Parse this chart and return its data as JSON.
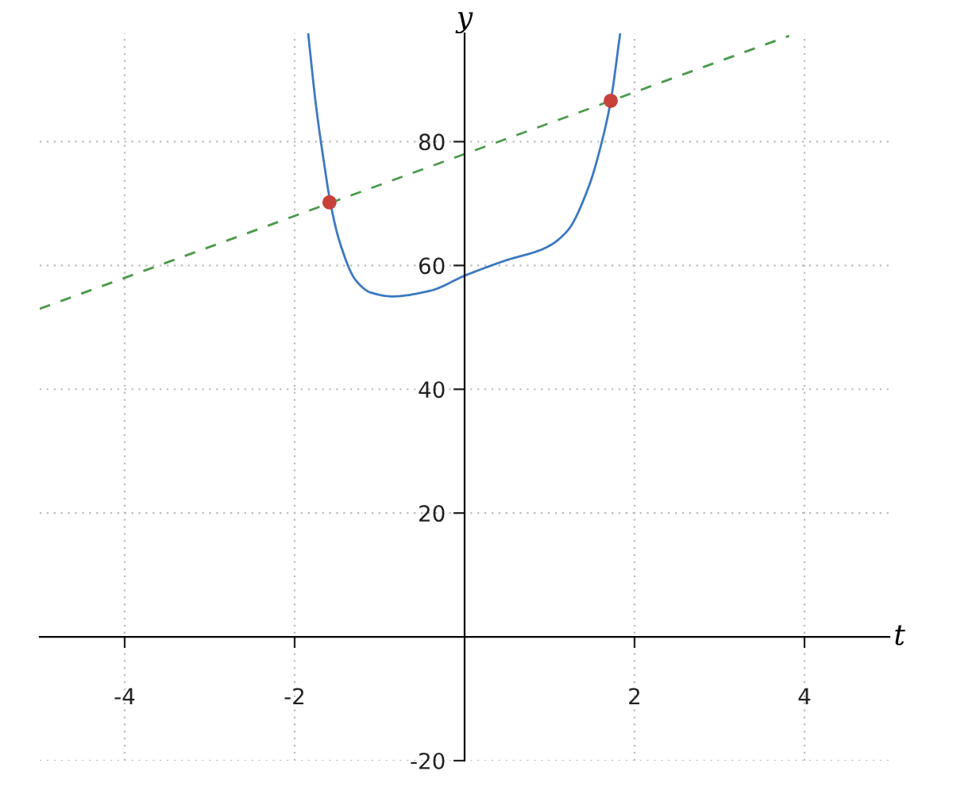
{
  "chart_data": {
    "type": "line",
    "xlabel": "t",
    "ylabel": "y",
    "xlim": [
      -5,
      5
    ],
    "ylim": [
      -20,
      97.5
    ],
    "xticks": [
      -4,
      -2,
      2,
      4
    ],
    "yticks": [
      -20,
      20,
      40,
      60,
      80
    ],
    "grid": true,
    "series": [
      {
        "color": "#3c78c0",
        "line_style": "solid",
        "x": [
          -1.84,
          -1.75,
          -1.65,
          -1.58,
          -1.47,
          -1.28,
          -1.1,
          -0.85,
          -0.41,
          0.01,
          0.46,
          0.96,
          1.21,
          1.46,
          1.61,
          1.72,
          1.83
        ],
        "values": [
          97.4,
          86,
          76.2,
          70.2,
          63.8,
          57.6,
          55.6,
          55.0,
          55.9,
          58.4,
          60.7,
          62.9,
          65.6,
          72.7,
          79.7,
          86.6,
          97.4
        ]
      },
      {
        "color": "#4a9a4a",
        "line_style": "dashed",
        "x": [
          -5,
          3.82
        ],
        "values": [
          53,
          97.1
        ]
      },
      {
        "type": "scatter",
        "color": "#c8423a",
        "marker": "circle",
        "x": [
          -1.59,
          1.72
        ],
        "values": [
          70.2,
          86.6
        ]
      }
    ]
  }
}
